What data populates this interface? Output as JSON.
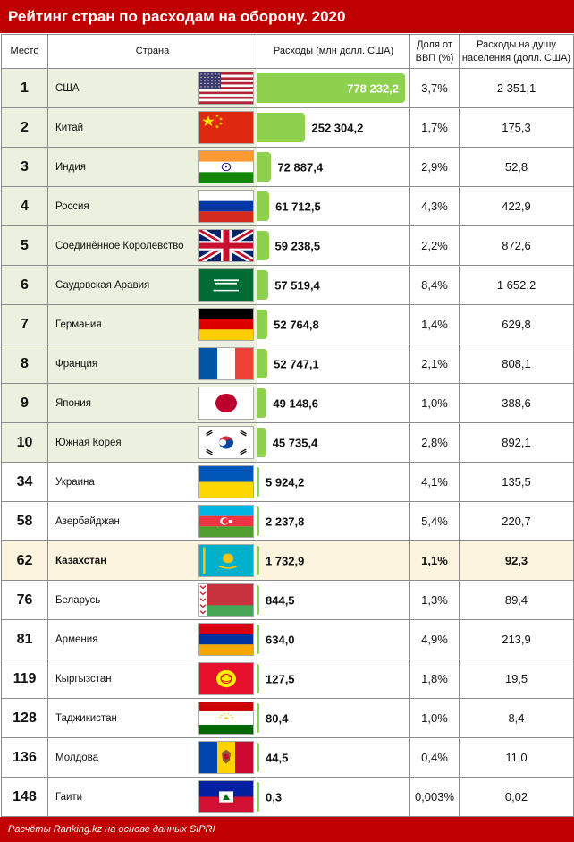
{
  "title": "Рейтинг стран по расходам на оборону. 2020",
  "headers": {
    "rank": "Место",
    "country": "Страна",
    "spend": "Расходы (млн долл. США)",
    "gdp": "Доля от ВВП (%)",
    "per_capita": "Расходы на душу населения (долл. США)"
  },
  "footer": "Расчёты Ranking.kz на основе данных SIPRI",
  "colors": {
    "header_bar": "#c00000",
    "bar": "#8ed14e",
    "top10_bg": "#ebf1de",
    "highlight_bg": "#fdf4e0"
  },
  "chart_data": {
    "type": "table",
    "title": "Рейтинг стран по расходам на оборону. 2020",
    "max_value": 778232.2,
    "rows": [
      {
        "rank": "1",
        "country": "США",
        "flag": "usa-flag",
        "value": 778232.2,
        "spend": "778 232,2",
        "gdp": "3,7%",
        "per_capita": "2 351,1"
      },
      {
        "rank": "2",
        "country": "Китай",
        "flag": "china-flag",
        "value": 252304.2,
        "spend": "252 304,2",
        "gdp": "1,7%",
        "per_capita": "175,3"
      },
      {
        "rank": "3",
        "country": "Индия",
        "flag": "india-flag",
        "value": 72887.4,
        "spend": "72 887,4",
        "gdp": "2,9%",
        "per_capita": "52,8"
      },
      {
        "rank": "4",
        "country": "Россия",
        "flag": "russia-flag",
        "value": 61712.5,
        "spend": "61 712,5",
        "gdp": "4,3%",
        "per_capita": "422,9"
      },
      {
        "rank": "5",
        "country": "Соединённое Королевство",
        "flag": "uk-flag",
        "value": 59238.5,
        "spend": "59 238,5",
        "gdp": "2,2%",
        "per_capita": "872,6"
      },
      {
        "rank": "6",
        "country": "Саудовская Аравия",
        "flag": "saudi-flag",
        "value": 57519.4,
        "spend": "57 519,4",
        "gdp": "8,4%",
        "per_capita": "1 652,2"
      },
      {
        "rank": "7",
        "country": "Германия",
        "flag": "germany-flag",
        "value": 52764.8,
        "spend": "52 764,8",
        "gdp": "1,4%",
        "per_capita": "629,8"
      },
      {
        "rank": "8",
        "country": "Франция",
        "flag": "france-flag",
        "value": 52747.1,
        "spend": "52 747,1",
        "gdp": "2,1%",
        "per_capita": "808,1"
      },
      {
        "rank": "9",
        "country": "Япония",
        "flag": "japan-flag",
        "value": 49148.6,
        "spend": "49 148,6",
        "gdp": "1,0%",
        "per_capita": "388,6"
      },
      {
        "rank": "10",
        "country": "Южная Корея",
        "flag": "korea-flag",
        "value": 45735.4,
        "spend": "45 735,4",
        "gdp": "2,8%",
        "per_capita": "892,1"
      },
      {
        "rank": "34",
        "country": "Украина",
        "flag": "ukraine-flag",
        "value": 5924.2,
        "spend": "5 924,2",
        "gdp": "4,1%",
        "per_capita": "135,5"
      },
      {
        "rank": "58",
        "country": "Азербайджан",
        "flag": "azerbaijan-flag",
        "value": 2237.8,
        "spend": "2 237,8",
        "gdp": "5,4%",
        "per_capita": "220,7"
      },
      {
        "rank": "62",
        "country": "Казахстан",
        "flag": "kazakhstan-flag",
        "value": 1732.9,
        "spend": "1 732,9",
        "gdp": "1,1%",
        "per_capita": "92,3",
        "highlight": true
      },
      {
        "rank": "76",
        "country": "Беларусь",
        "flag": "belarus-flag",
        "value": 844.5,
        "spend": "844,5",
        "gdp": "1,3%",
        "per_capita": "89,4"
      },
      {
        "rank": "81",
        "country": "Армения",
        "flag": "armenia-flag",
        "value": 634.0,
        "spend": "634,0",
        "gdp": "4,9%",
        "per_capita": "213,9"
      },
      {
        "rank": "119",
        "country": "Кыргызстан",
        "flag": "kyrgyzstan-flag",
        "value": 127.5,
        "spend": "127,5",
        "gdp": "1,8%",
        "per_capita": "19,5"
      },
      {
        "rank": "128",
        "country": "Таджикистан",
        "flag": "tajikistan-flag",
        "value": 80.4,
        "spend": "80,4",
        "gdp": "1,0%",
        "per_capita": "8,4"
      },
      {
        "rank": "136",
        "country": "Молдова",
        "flag": "moldova-flag",
        "value": 44.5,
        "spend": "44,5",
        "gdp": "0,4%",
        "per_capita": "11,0"
      },
      {
        "rank": "148",
        "country": "Гаити",
        "flag": "haiti-flag",
        "value": 0.3,
        "spend": "0,3",
        "gdp": "0,003%",
        "per_capita": "0,02"
      }
    ]
  }
}
